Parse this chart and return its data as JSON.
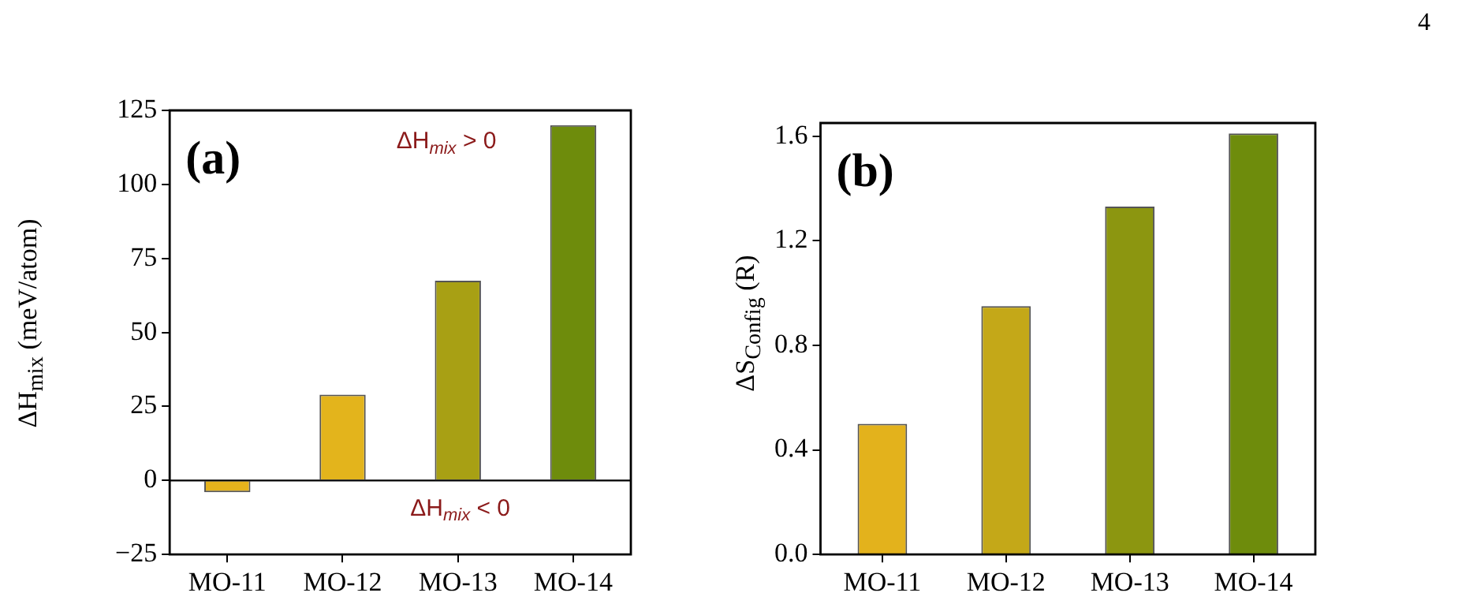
{
  "chart_data": [
    {
      "type": "bar",
      "categories": [
        "MO-11",
        "MO-12",
        "MO-13",
        "MO-14"
      ],
      "values": [
        -4,
        29,
        67.5,
        120
      ],
      "colors": [
        "#e6b31c",
        "#e3b41c",
        "#a8a014",
        "#6e8c0c"
      ],
      "ylabel": "ΔH$_{mix}$ (meV/atom)",
      "ylim": [
        -25,
        125
      ],
      "yticks": [
        {
          "value": -25,
          "label": "−25"
        },
        0,
        25,
        50,
        75,
        100,
        125
      ],
      "grid": false,
      "legend": false,
      "ref_lines": [
        {
          "axis": "y",
          "value": 0,
          "color": "#000000"
        }
      ],
      "annotations": [
        "(a)",
        "ΔH$_{mix}$ > 0",
        "ΔH$_{mix}$ < 0"
      ]
    },
    {
      "type": "bar",
      "categories": [
        "MO-11",
        "MO-12",
        "MO-13",
        "MO-14"
      ],
      "values": [
        0.5,
        0.95,
        1.33,
        1.61
      ],
      "colors": [
        "#e3b21c",
        "#c4a818",
        "#8c9610",
        "#6e8c0c"
      ],
      "ylabel": "ΔS$_{Config}$ (R)",
      "ylim": [
        0,
        1.65
      ],
      "yticks": [
        {
          "value": 0,
          "label": "0.0"
        },
        0.4,
        0.8,
        1.2,
        1.6
      ],
      "grid": false,
      "legend": false,
      "annotations": [
        "(b)",
        "4"
      ]
    }
  ]
}
